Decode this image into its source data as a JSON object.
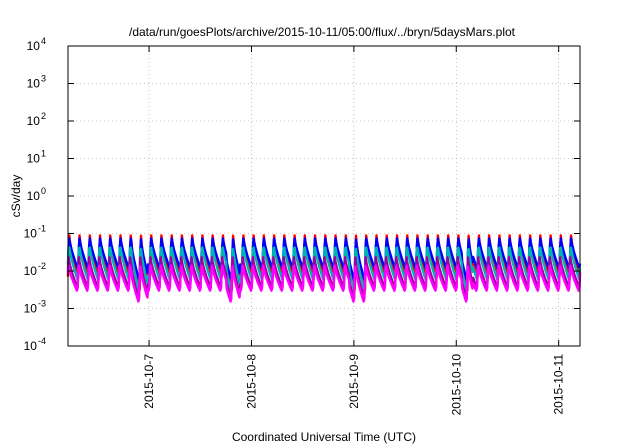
{
  "chart_data": {
    "type": "line",
    "title": "/data/run/goesPlots/archive/2015-10-11/05:00/flux/../bryn/5daysMars.plot",
    "xlabel": "Coordinated Universal Time (UTC)",
    "ylabel": "cSv/day",
    "yscale": "log",
    "ylim_exp": [
      -4,
      4
    ],
    "y_tick_base": "10",
    "y_tick_exponents": [
      "-4",
      "-3",
      "-2",
      "-1",
      "0",
      "1",
      "2",
      "3",
      "4"
    ],
    "xlim": [
      "2015-10-06 05:00",
      "2015-10-11 05:00"
    ],
    "x_tick_labels": [
      "2015-10-7",
      "2015-10-8",
      "2015-10-9",
      "2015-10-10",
      "2015-10-11"
    ],
    "x_tick_dates": [
      "2015-10-07 00:00",
      "2015-10-08 00:00",
      "2015-10-09 00:00",
      "2015-10-10 00:00",
      "2015-10-11 00:00"
    ],
    "grid": true,
    "sawtooth_period_hours": 2.4,
    "series": [
      {
        "color": "#ff0000",
        "peak_log10": -1.02,
        "trough_log10": -2.15,
        "trough_log10_quiet": -2.5
      },
      {
        "color": "#0000ff",
        "peak_log10": -1.06,
        "trough_log10": -1.95,
        "trough_log10_quiet": -2.28
      },
      {
        "color": "#00b4b4",
        "peak_log10": -1.25,
        "trough_log10": -2.25,
        "trough_log10_quiet": -2.55
      },
      {
        "color": "#a000a0",
        "peak_log10": -1.62,
        "trough_log10": -2.45,
        "trough_log10_quiet": -2.75
      },
      {
        "color": "#ff00ff",
        "peak_log10": -1.8,
        "trough_log10": -2.55,
        "trough_log10_quiet": -2.85
      }
    ]
  }
}
